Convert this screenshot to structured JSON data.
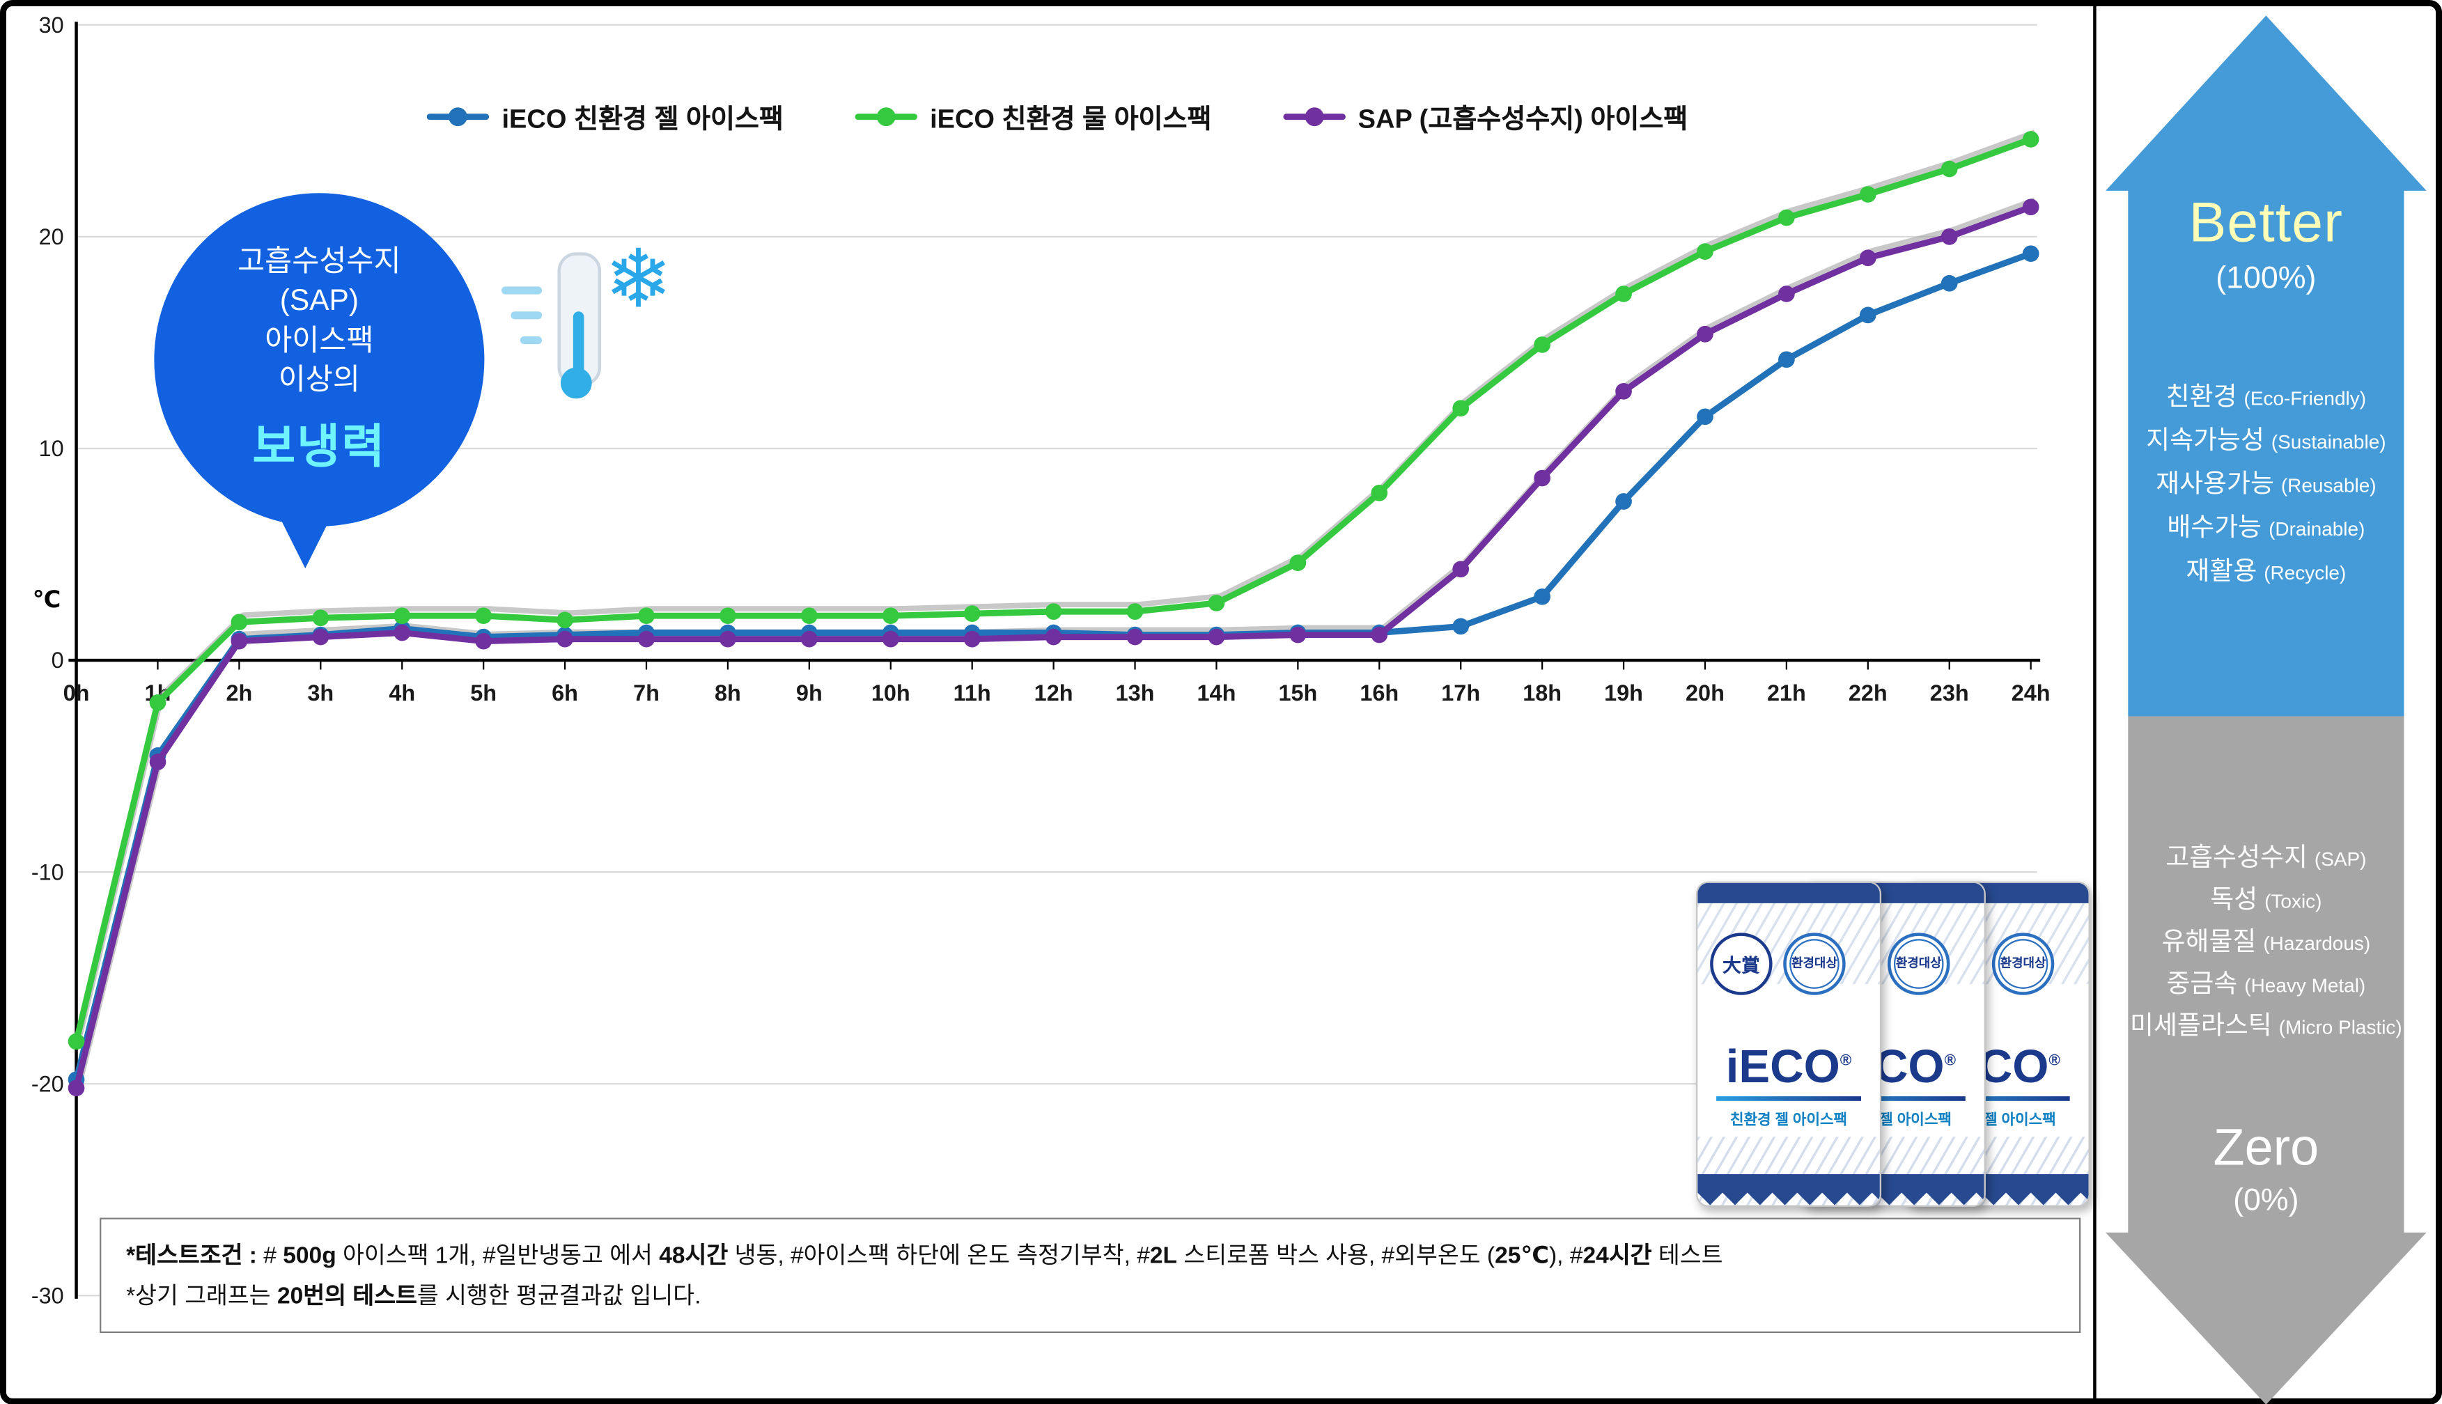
{
  "chart_data": {
    "type": "line",
    "title": "",
    "x": [
      0,
      1,
      2,
      3,
      4,
      5,
      6,
      7,
      8,
      9,
      10,
      11,
      12,
      13,
      14,
      15,
      16,
      17,
      18,
      19,
      20,
      21,
      22,
      23,
      24
    ],
    "x_tick_labels": [
      "0h",
      "1h",
      "2h",
      "3h",
      "4h",
      "5h",
      "6h",
      "7h",
      "8h",
      "9h",
      "10h",
      "11h",
      "12h",
      "13h",
      "14h",
      "15h",
      "16h",
      "17h",
      "18h",
      "19h",
      "20h",
      "21h",
      "22h",
      "23h",
      "24h"
    ],
    "ylabel": "℃",
    "ylim": [
      -30,
      30
    ],
    "y_ticks": [
      30,
      20,
      10,
      0,
      -10,
      -20,
      -30
    ],
    "grid": true,
    "legend_position": "top",
    "series": [
      {
        "name": "iECO 친환경 젤 아이스팩",
        "color": "#2272b9",
        "shadow": false,
        "values": [
          -19.8,
          -4.5,
          1.0,
          1.2,
          1.5,
          1.1,
          1.2,
          1.3,
          1.3,
          1.3,
          1.3,
          1.3,
          1.3,
          1.2,
          1.2,
          1.3,
          1.3,
          1.6,
          3.0,
          7.5,
          11.5,
          14.2,
          16.3,
          17.8,
          19.2
        ]
      },
      {
        "name": "iECO 친환경 물 아이스팩",
        "color": "#35c940",
        "shadow": true,
        "values": [
          -18.0,
          -2.0,
          1.8,
          2.0,
          2.1,
          2.1,
          1.9,
          2.1,
          2.1,
          2.1,
          2.1,
          2.2,
          2.3,
          2.3,
          2.7,
          4.6,
          7.9,
          11.9,
          14.9,
          17.3,
          19.3,
          20.9,
          22.0,
          23.2,
          24.6
        ]
      },
      {
        "name": "SAP (고흡수성수지) 아이스팩",
        "color": "#7030a0",
        "shadow": true,
        "values": [
          -20.2,
          -4.8,
          0.9,
          1.1,
          1.3,
          0.9,
          1.0,
          1.0,
          1.0,
          1.0,
          1.0,
          1.0,
          1.1,
          1.1,
          1.1,
          1.2,
          1.2,
          4.3,
          8.6,
          12.7,
          15.4,
          17.3,
          19.0,
          20.0,
          21.4
        ]
      }
    ]
  },
  "callout": {
    "lines": [
      "고흡수성수지",
      "(SAP)",
      "아이스팩",
      "이상의"
    ],
    "highlight": "보냉력",
    "bg_color": "#1261e0",
    "highlight_color": "#6ef3ff"
  },
  "icons": {
    "snowflake": "❄"
  },
  "panel": {
    "better": {
      "title": "Better",
      "subtitle": "(100%)",
      "color": "#459bd7",
      "items": [
        {
          "ko": "친환경",
          "en": "(Eco-Friendly)"
        },
        {
          "ko": "지속가능성",
          "en": "(Sustainable)"
        },
        {
          "ko": "재사용가능",
          "en": "(Reusable)"
        },
        {
          "ko": "배수가능",
          "en": "(Drainable)"
        },
        {
          "ko": "재활용",
          "en": "(Recycle)"
        }
      ]
    },
    "zero": {
      "title": "Zero",
      "subtitle": "(0%)",
      "color": "#a6a6a6",
      "items": [
        {
          "ko": "고흡수성수지",
          "en": "(SAP)"
        },
        {
          "ko": "독성",
          "en": "(Toxic)"
        },
        {
          "ko": "유해물질",
          "en": "(Hazardous)"
        },
        {
          "ko": "중금속",
          "en": "(Heavy Metal)"
        },
        {
          "ko": "미세플라스틱",
          "en": "(Micro Plastic)"
        }
      ]
    }
  },
  "footnote": {
    "line1": [
      {
        "t": "*테스트조건 : ",
        "b": true
      },
      {
        "t": "# ",
        "b": false
      },
      {
        "t": "500g",
        "b": true
      },
      {
        "t": " 아이스팩 1개, #일반냉동고 에서 ",
        "b": false
      },
      {
        "t": "48시간",
        "b": true
      },
      {
        "t": " 냉동, #아이스팩 하단에 온도 측정기부착, #",
        "b": false
      },
      {
        "t": "2L",
        "b": true
      },
      {
        "t": " 스티로폼 박스 사용, #외부온도 (",
        "b": false
      },
      {
        "t": "25℃",
        "b": true
      },
      {
        "t": "), #",
        "b": false
      },
      {
        "t": "24시간",
        "b": true
      },
      {
        "t": " 테스트",
        "b": false
      }
    ],
    "line2": [
      {
        "t": "*상기 그래프는 ",
        "b": false
      },
      {
        "t": "20번의 테스트",
        "b": true
      },
      {
        "t": "를 시행한 평균결과값 입니다.",
        "b": false
      }
    ]
  },
  "products": {
    "brand": "iECO",
    "reg": "®",
    "subtitle": "친환경 젤 아이스팩",
    "badge_daesang": "大賞",
    "badge_eco": "환경대상"
  }
}
